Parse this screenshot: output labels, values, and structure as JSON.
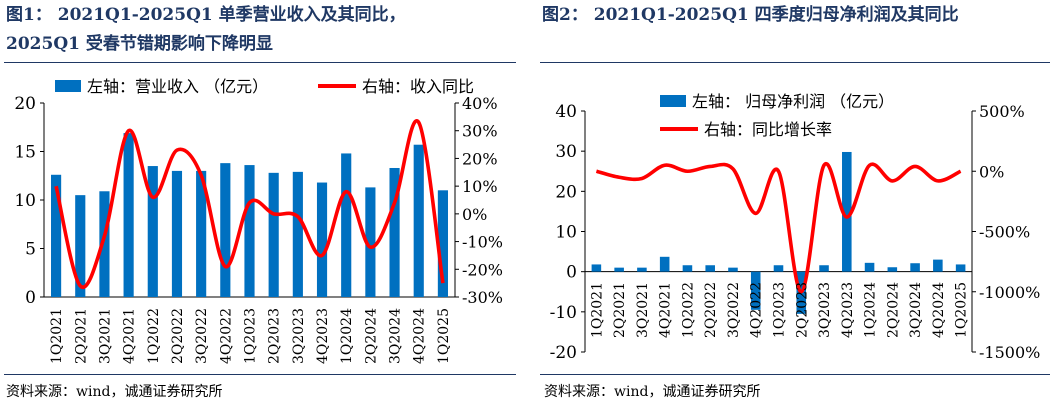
{
  "left": {
    "title_line1": "图1：  2021Q1-2025Q1 单季营业收入及其同比，",
    "title_line2": "2025Q1 受春节错期影响下降明显",
    "source": "资料来源：wind，诚通证券研究所",
    "chart_data": {
      "type": "bar+line",
      "categories": [
        "1Q2021",
        "2Q2021",
        "3Q2021",
        "4Q2021",
        "1Q2022",
        "2Q2022",
        "3Q2022",
        "4Q2022",
        "1Q2023",
        "2Q2023",
        "3Q2023",
        "4Q2023",
        "1Q2024",
        "2Q2024",
        "3Q2024",
        "4Q2024",
        "1Q2025"
      ],
      "series": [
        {
          "name": "左轴：营业收入 （亿元）",
          "type": "bar",
          "axis": "left",
          "values": [
            12.6,
            10.5,
            10.9,
            16.9,
            13.5,
            13.0,
            13.0,
            13.8,
            13.6,
            12.8,
            12.9,
            11.8,
            14.8,
            11.3,
            13.3,
            15.7,
            11.0
          ]
        },
        {
          "name": "右轴：收入同比",
          "type": "line",
          "axis": "right",
          "values": [
            10,
            -26,
            -8,
            30,
            6,
            23,
            14,
            -19,
            4,
            0,
            -1,
            -15,
            8,
            -12,
            4,
            33,
            -25
          ]
        }
      ],
      "ylim_left": [
        0,
        20
      ],
      "yticks_left": [
        "0",
        "5",
        "10",
        "15",
        "20"
      ],
      "ylim_right": [
        -30,
        40
      ],
      "yticks_right": [
        "-30%",
        "-20%",
        "-10%",
        "0%",
        "10%",
        "20%",
        "30%",
        "40%"
      ],
      "colors": {
        "bar": "#0070c0",
        "line": "#ff0000"
      },
      "legend_position": "top"
    }
  },
  "right": {
    "title_line1": "图2：  2021Q1-2025Q1 四季度归母净利润及其同比",
    "source": "资料来源：wind，诚通证券研究所",
    "chart_data": {
      "type": "bar+line",
      "categories": [
        "1Q2021",
        "2Q2021",
        "3Q2021",
        "4Q2021",
        "1Q2022",
        "2Q2022",
        "3Q2022",
        "4Q2022",
        "1Q2023",
        "2Q2023",
        "3Q2023",
        "4Q2023",
        "1Q2024",
        "2Q2024",
        "3Q2024",
        "4Q2024",
        "1Q2025"
      ],
      "series": [
        {
          "name": "左轴： 归母净利润 （亿元）",
          "type": "bar",
          "axis": "left",
          "values": [
            1.8,
            1.0,
            1.0,
            3.7,
            1.6,
            1.6,
            1.0,
            -9.5,
            1.6,
            -10.5,
            1.6,
            29.8,
            2.2,
            1.1,
            2.1,
            3.0,
            1.8
          ]
        },
        {
          "name": "右轴：同比增长率",
          "type": "line",
          "axis": "right",
          "values": [
            0,
            -50,
            -60,
            50,
            0,
            40,
            20,
            -350,
            0,
            -1000,
            50,
            -380,
            50,
            -80,
            40,
            -80,
            0
          ]
        }
      ],
      "ylim_left": [
        -20,
        40
      ],
      "yticks_left": [
        "-20",
        "-10",
        "0",
        "10",
        "20",
        "30",
        "40"
      ],
      "ylim_right": [
        -1500,
        500
      ],
      "yticks_right": [
        "-1500%",
        "-1000%",
        "-500%",
        "0%",
        "500%"
      ],
      "colors": {
        "bar": "#0070c0",
        "line": "#ff0000"
      },
      "legend_position": "top-left"
    }
  }
}
